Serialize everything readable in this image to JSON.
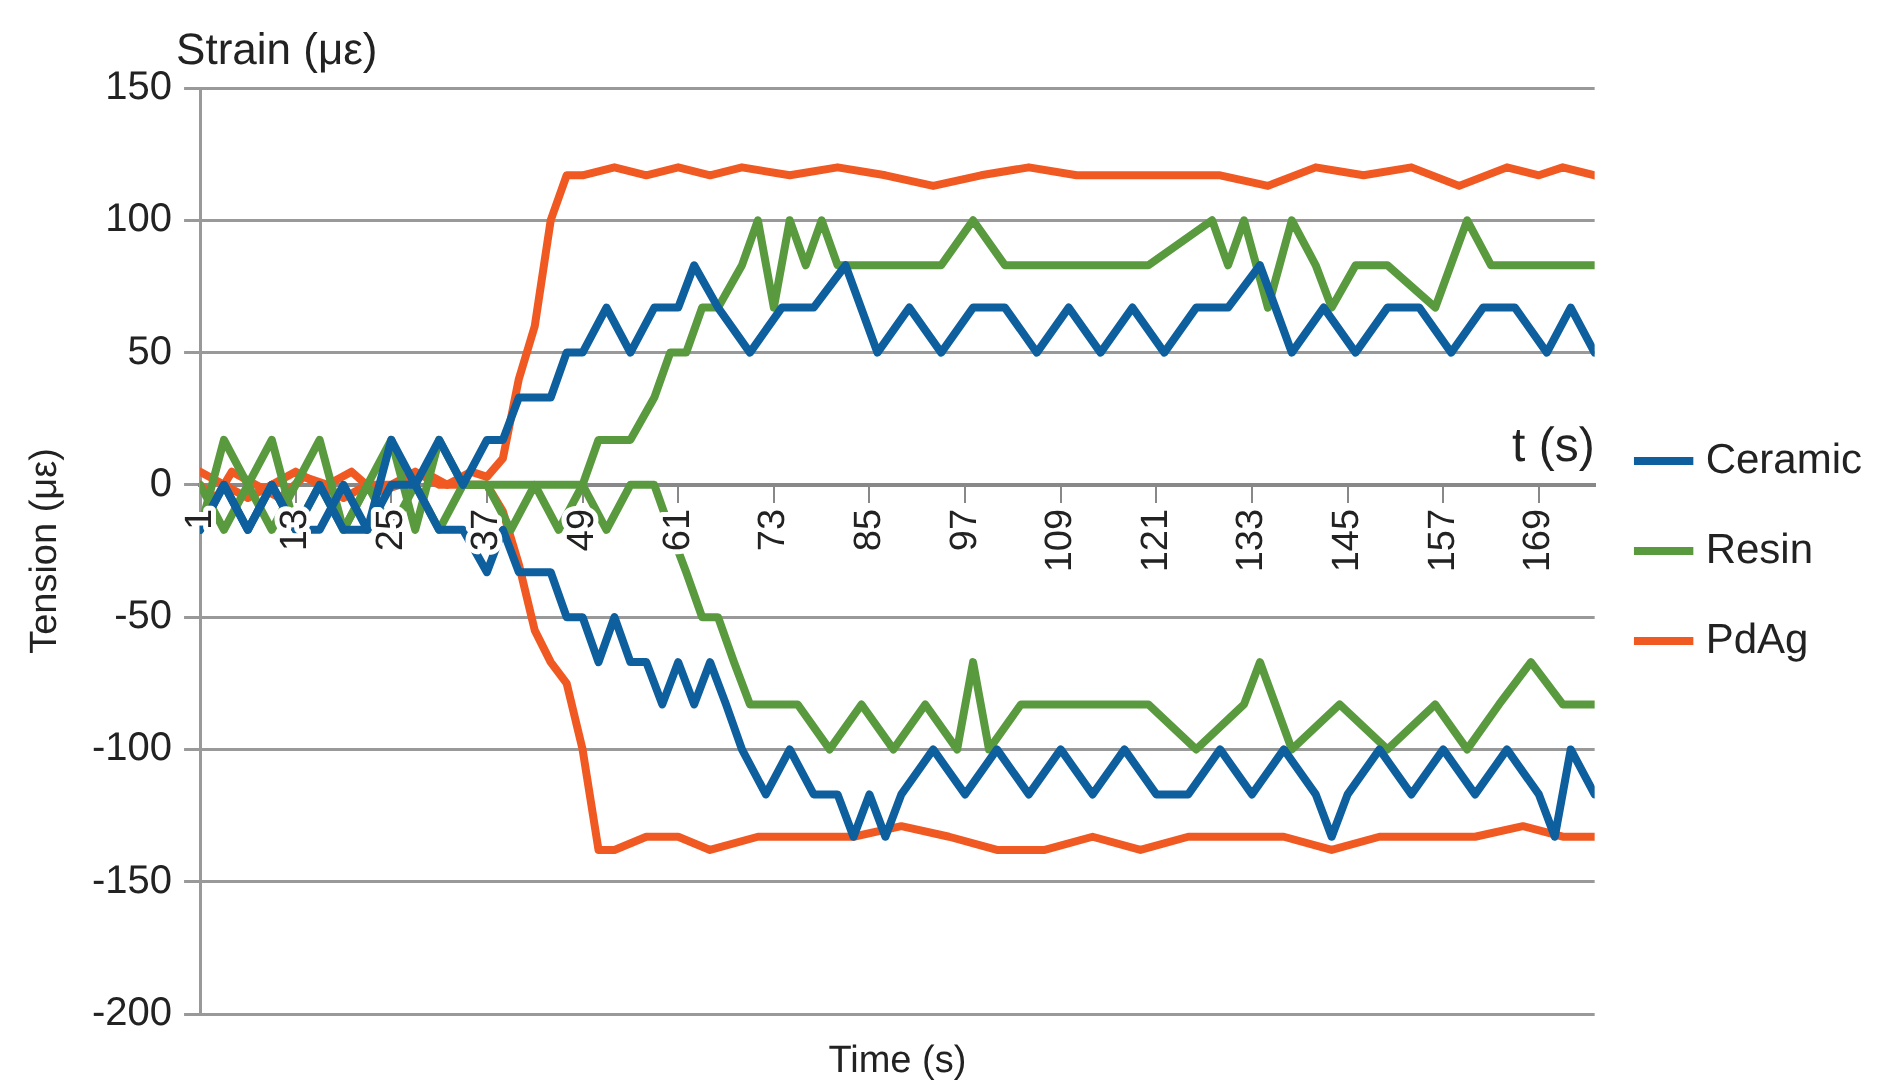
{
  "chart_data": {
    "type": "line",
    "title": "Strain (με)",
    "ylabel": "Tension (με)",
    "xlabel": "Time (s)",
    "annotations": [
      "t (s)"
    ],
    "xlim": [
      1,
      176
    ],
    "xticks": [
      1,
      13,
      25,
      37,
      49,
      61,
      73,
      85,
      97,
      109,
      121,
      133,
      145,
      157,
      169
    ],
    "ylim": [
      -200,
      150
    ],
    "yticks": [
      -200,
      -150,
      -100,
      -50,
      0,
      50,
      100,
      150
    ],
    "grid": "y",
    "legend": "right",
    "marker": "none",
    "line_style": "solid",
    "series": [
      {
        "name": "Ceramic",
        "color": "#0e5f9e",
        "x": [
          1,
          4,
          7,
          10,
          13,
          16,
          19,
          22,
          25,
          28,
          31,
          34,
          37,
          39,
          41,
          43,
          45,
          47,
          49,
          52,
          55,
          58,
          61,
          63,
          66,
          70,
          74,
          78,
          82,
          86,
          90,
          94,
          98,
          102,
          106,
          110,
          114,
          118,
          122,
          126,
          130,
          134,
          138,
          142,
          146,
          150,
          154,
          158,
          162,
          166,
          170,
          173,
          176
        ],
        "values": [
          -17,
          0,
          -17,
          0,
          -17,
          0,
          -17,
          -17,
          17,
          0,
          17,
          0,
          17,
          17,
          33,
          33,
          33,
          50,
          50,
          67,
          50,
          67,
          67,
          83,
          67,
          50,
          67,
          67,
          83,
          50,
          67,
          50,
          67,
          67,
          50,
          67,
          50,
          67,
          50,
          67,
          67,
          83,
          50,
          67,
          50,
          67,
          67,
          50,
          67,
          67,
          50,
          67,
          50
        ]
      },
      {
        "color": "#0e5f9e",
        "x": [
          1,
          4,
          7,
          10,
          13,
          16,
          19,
          22,
          25,
          28,
          31,
          34,
          37,
          39,
          41,
          43,
          45,
          47,
          49,
          51,
          53,
          55,
          57,
          59,
          61,
          63,
          65,
          67,
          69,
          72,
          75,
          78,
          81,
          83,
          85,
          87,
          89,
          93,
          97,
          101,
          105,
          109,
          113,
          117,
          121,
          125,
          129,
          133,
          137,
          141,
          143,
          145,
          149,
          153,
          157,
          161,
          165,
          169,
          171,
          173,
          176
        ],
        "values": [
          -17,
          0,
          -17,
          0,
          -17,
          -17,
          0,
          -17,
          0,
          0,
          -17,
          -17,
          -33,
          -17,
          -33,
          -33,
          -33,
          -50,
          -50,
          -67,
          -50,
          -67,
          -67,
          -83,
          -67,
          -83,
          -67,
          -83,
          -100,
          -117,
          -100,
          -117,
          -117,
          -133,
          -117,
          -133,
          -117,
          -100,
          -117,
          -100,
          -117,
          -100,
          -117,
          -100,
          -117,
          -117,
          -100,
          -117,
          -100,
          -117,
          -133,
          -117,
          -100,
          -117,
          -100,
          -117,
          -100,
          -117,
          -133,
          -100,
          -117
        ]
      },
      {
        "name": "Resin",
        "color": "#5a9a3f",
        "x": [
          1,
          4,
          7,
          10,
          13,
          16,
          19,
          22,
          25,
          28,
          31,
          34,
          37,
          40,
          43,
          46,
          49,
          51,
          55,
          58,
          60,
          62,
          64,
          66,
          69,
          71,
          73,
          75,
          77,
          79,
          81,
          84,
          88,
          94,
          98,
          102,
          110,
          120,
          128,
          130,
          132,
          135,
          138,
          141,
          143,
          146,
          150,
          156,
          160,
          163,
          170,
          176
        ],
        "values": [
          -17,
          17,
          0,
          17,
          -17,
          0,
          -17,
          0,
          17,
          -17,
          17,
          0,
          0,
          0,
          0,
          0,
          0,
          17,
          17,
          33,
          50,
          50,
          67,
          67,
          83,
          100,
          67,
          100,
          83,
          100,
          83,
          83,
          83,
          83,
          100,
          83,
          83,
          83,
          100,
          83,
          100,
          67,
          100,
          83,
          67,
          83,
          83,
          67,
          100,
          83,
          83,
          83
        ]
      },
      {
        "color": "#5a9a3f",
        "x": [
          1,
          4,
          7,
          10,
          13,
          16,
          19,
          22,
          25,
          28,
          31,
          34,
          37,
          40,
          43,
          46,
          49,
          52,
          55,
          58,
          60,
          62,
          64,
          66,
          68,
          70,
          72,
          76,
          80,
          84,
          88,
          92,
          96,
          98,
          100,
          104,
          108,
          114,
          120,
          126,
          132,
          134,
          138,
          144,
          150,
          156,
          160,
          164,
          168,
          172,
          176
        ],
        "values": [
          0,
          -17,
          0,
          -17,
          0,
          17,
          -17,
          0,
          -17,
          0,
          -17,
          0,
          0,
          -17,
          0,
          -17,
          0,
          -17,
          0,
          0,
          -17,
          -33,
          -50,
          -50,
          -67,
          -83,
          -83,
          -83,
          -100,
          -83,
          -100,
          -83,
          -100,
          -67,
          -100,
          -83,
          -83,
          -83,
          -83,
          -100,
          -83,
          -67,
          -100,
          -83,
          -100,
          -83,
          -100,
          -83,
          -67,
          -83,
          -83
        ]
      },
      {
        "name": "PdAg",
        "color": "#f05a22",
        "x": [
          1,
          3,
          5,
          8,
          11,
          14,
          17,
          20,
          23,
          26,
          29,
          32,
          35,
          37,
          39,
          41,
          43,
          45,
          47,
          49,
          53,
          57,
          61,
          65,
          69,
          75,
          81,
          87,
          93,
          99,
          105,
          111,
          117,
          123,
          129,
          135,
          141,
          147,
          153,
          159,
          165,
          169,
          172,
          176
        ],
        "values": [
          0,
          -5,
          5,
          0,
          -5,
          3,
          0,
          5,
          -3,
          0,
          5,
          0,
          5,
          3,
          10,
          40,
          60,
          100,
          117,
          117,
          120,
          117,
          120,
          117,
          120,
          117,
          120,
          117,
          113,
          117,
          120,
          117,
          117,
          117,
          117,
          113,
          120,
          117,
          120,
          113,
          120,
          117,
          120,
          117
        ]
      },
      {
        "color": "#f05a22",
        "x": [
          1,
          4,
          7,
          10,
          13,
          16,
          19,
          22,
          25,
          28,
          31,
          34,
          37,
          39,
          41,
          43,
          45,
          47,
          49,
          51,
          53,
          57,
          61,
          65,
          71,
          77,
          83,
          89,
          95,
          101,
          107,
          113,
          119,
          125,
          131,
          137,
          143,
          149,
          155,
          161,
          167,
          172,
          176
        ],
        "values": [
          5,
          0,
          -5,
          0,
          5,
          0,
          -5,
          0,
          0,
          5,
          0,
          0,
          0,
          -10,
          -30,
          -55,
          -67,
          -75,
          -100,
          -138,
          -138,
          -133,
          -133,
          -138,
          -133,
          -133,
          -133,
          -129,
          -133,
          -138,
          -138,
          -133,
          -138,
          -133,
          -133,
          -133,
          -138,
          -133,
          -133,
          -133,
          -129,
          -133,
          -133
        ]
      }
    ]
  }
}
